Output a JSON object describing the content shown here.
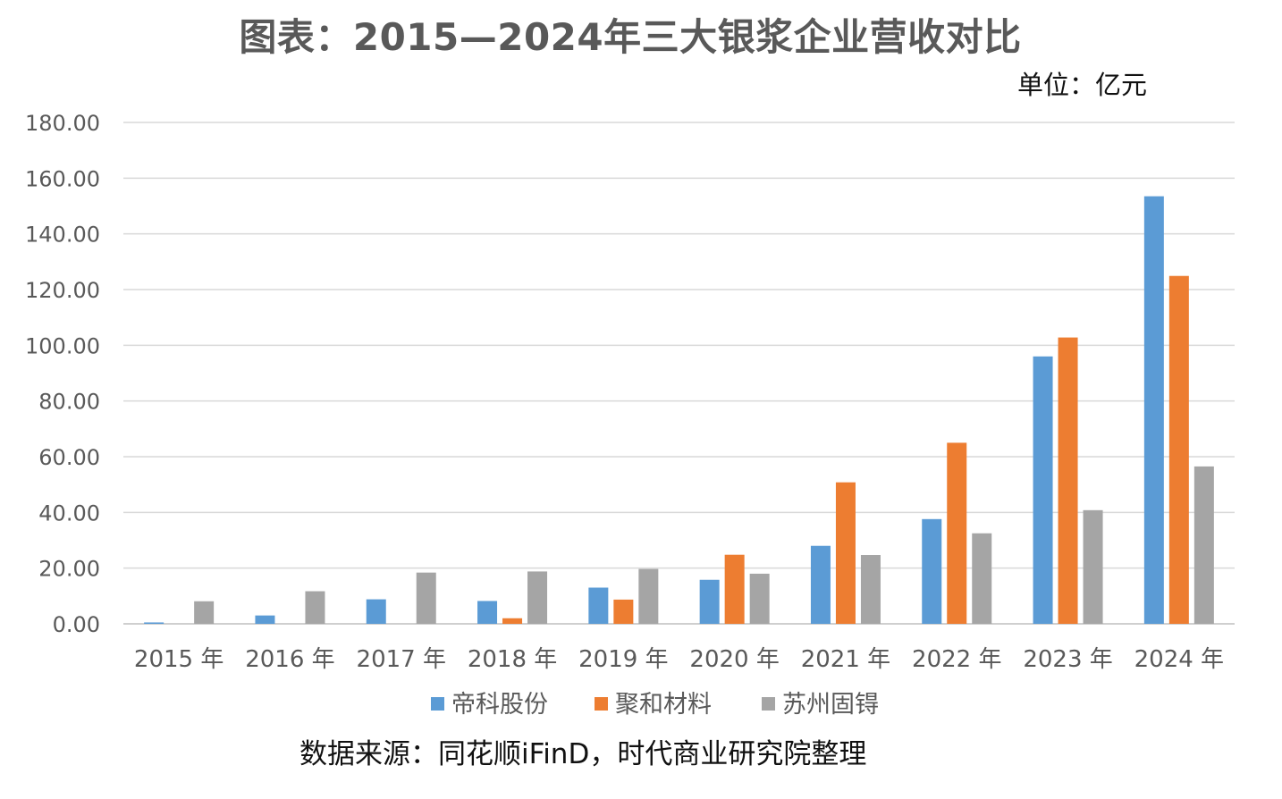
{
  "chart_data": {
    "type": "bar",
    "title": "图表：2015—2024年三大银浆企业营收对比",
    "unit": "单位：亿元",
    "source": "数据来源：同花顺iFinD，时代商业研究院整理",
    "categories": [
      "2015 年",
      "2016 年",
      "2017 年",
      "2018 年",
      "2019 年",
      "2020 年",
      "2021 年",
      "2022 年",
      "2023 年",
      "2024 年"
    ],
    "series": [
      {
        "name": "帝科股份",
        "color": "#5B9BD5",
        "values": [
          0.5,
          3.0,
          8.8,
          8.2,
          13.0,
          15.8,
          28.0,
          37.6,
          96.0,
          153.5
        ]
      },
      {
        "name": "聚和材料",
        "color": "#ED7D31",
        "values": [
          null,
          null,
          null,
          2.0,
          8.7,
          24.8,
          50.8,
          65.0,
          102.8,
          124.9
        ]
      },
      {
        "name": "苏州固锝",
        "color": "#A5A5A5",
        "values": [
          8.1,
          11.7,
          18.4,
          18.8,
          19.7,
          18.0,
          24.7,
          32.5,
          40.8,
          56.5
        ]
      }
    ],
    "yTicks": [
      "0.00",
      "20.00",
      "40.00",
      "60.00",
      "80.00",
      "100.00",
      "120.00",
      "140.00",
      "160.00",
      "180.00"
    ],
    "ylim": [
      0,
      180
    ],
    "grid": true,
    "legend": "bottom"
  }
}
